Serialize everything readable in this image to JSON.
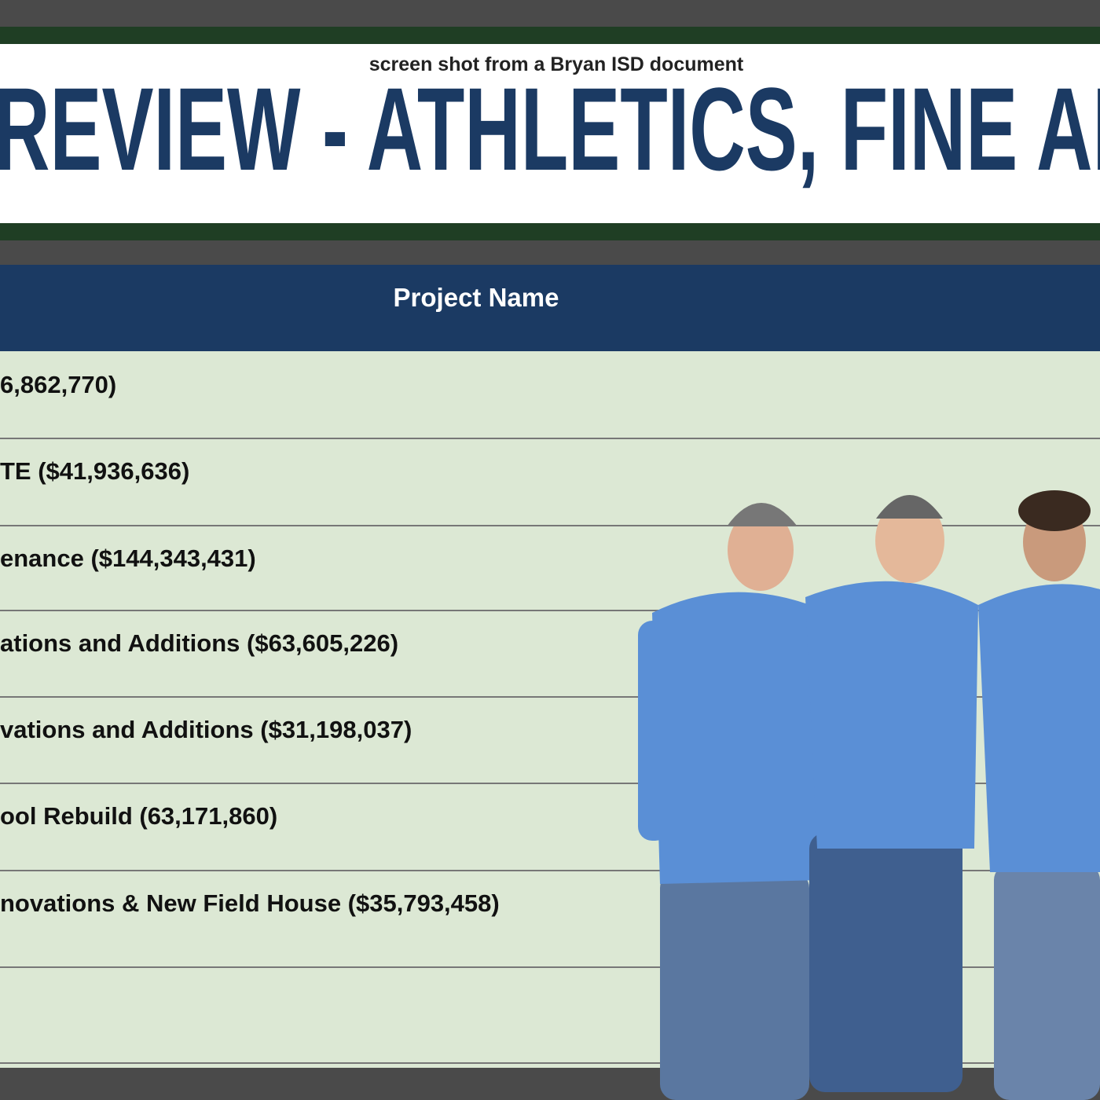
{
  "header": {
    "caption": "screen shot from a Bryan ISD document",
    "title": "REVIEW - ATHLETICS, FINE AR"
  },
  "table": {
    "column_header": "Project Name",
    "rows": [
      "6,862,770)",
      "TE ($41,936,636)",
      "enance ($144,343,431)",
      "ations and Additions ($63,605,226)",
      "vations and Additions ($31,198,037)",
      "ool Rebuild (63,171,860)",
      "novations & New Field House ($35,793,458)"
    ]
  }
}
